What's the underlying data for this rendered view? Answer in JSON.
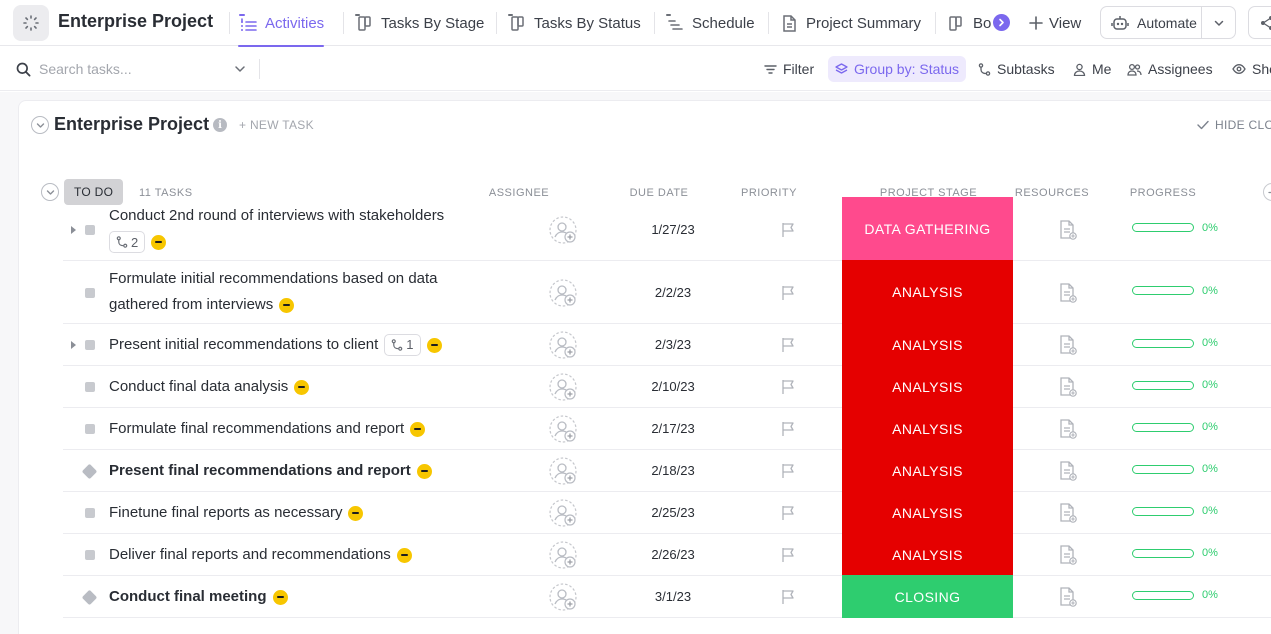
{
  "header": {
    "project_title": "Enterprise Project",
    "tabs": [
      {
        "label": "Activities",
        "active": true
      },
      {
        "label": "Tasks By Stage",
        "active": false
      },
      {
        "label": "Tasks By Status",
        "active": false
      },
      {
        "label": "Schedule",
        "active": false
      },
      {
        "label": "Project Summary",
        "active": false
      },
      {
        "label": "Bo",
        "active": false
      }
    ],
    "add_view_label": "View",
    "automate_label": "Automate"
  },
  "toolbar": {
    "search_placeholder": "Search tasks...",
    "filter_label": "Filter",
    "group_by_label": "Group by: Status",
    "subtasks_label": "Subtasks",
    "me_label": "Me",
    "assignees_label": "Assignees",
    "show_label": "Sho"
  },
  "list": {
    "title": "Enterprise Project",
    "new_task_label": "+ NEW TASK",
    "hide_closed_label": "HIDE CLO",
    "group": {
      "status_label": "TO DO",
      "task_count": "11 TASKS"
    },
    "columns": {
      "assignee": "ASSIGNEE",
      "due_date": "DUE DATE",
      "priority": "PRIORITY",
      "project_stage": "PROJECT STAGE",
      "resources": "RESOURCES",
      "progress": "PROGRESS"
    },
    "rows": [
      {
        "name": "Conduct 2nd round of interviews with stakeholders",
        "subtasks": "2",
        "due": "1/27/23",
        "stage": "DATA GATHERING",
        "progress": "0%"
      },
      {
        "name": "Formulate initial recommendations based on data gathered from interviews",
        "due": "2/2/23",
        "stage": "ANALYSIS",
        "progress": "0%"
      },
      {
        "name": "Present initial recommendations to client",
        "subtasks": "1",
        "due": "2/3/23",
        "stage": "ANALYSIS",
        "progress": "0%"
      },
      {
        "name": "Conduct final data analysis",
        "due": "2/10/23",
        "stage": "ANALYSIS",
        "progress": "0%"
      },
      {
        "name": "Formulate final recommendations and report",
        "due": "2/17/23",
        "stage": "ANALYSIS",
        "progress": "0%"
      },
      {
        "name": "Present final recommendations and report",
        "due": "2/18/23",
        "stage": "ANALYSIS",
        "progress": "0%"
      },
      {
        "name": "Finetune final reports as necessary",
        "due": "2/25/23",
        "stage": "ANALYSIS",
        "progress": "0%"
      },
      {
        "name": "Deliver final reports and recommendations",
        "due": "2/26/23",
        "stage": "ANALYSIS",
        "progress": "0%"
      },
      {
        "name": "Conduct final meeting",
        "due": "3/1/23",
        "stage": "CLOSING",
        "progress": "0%"
      }
    ]
  },
  "colors": {
    "accent": "#7b68ee",
    "stage_data_gathering": "#ff4a8d",
    "stage_analysis": "#e50000",
    "stage_closing": "#2ecd6f",
    "progress": "#2ecd6f"
  }
}
